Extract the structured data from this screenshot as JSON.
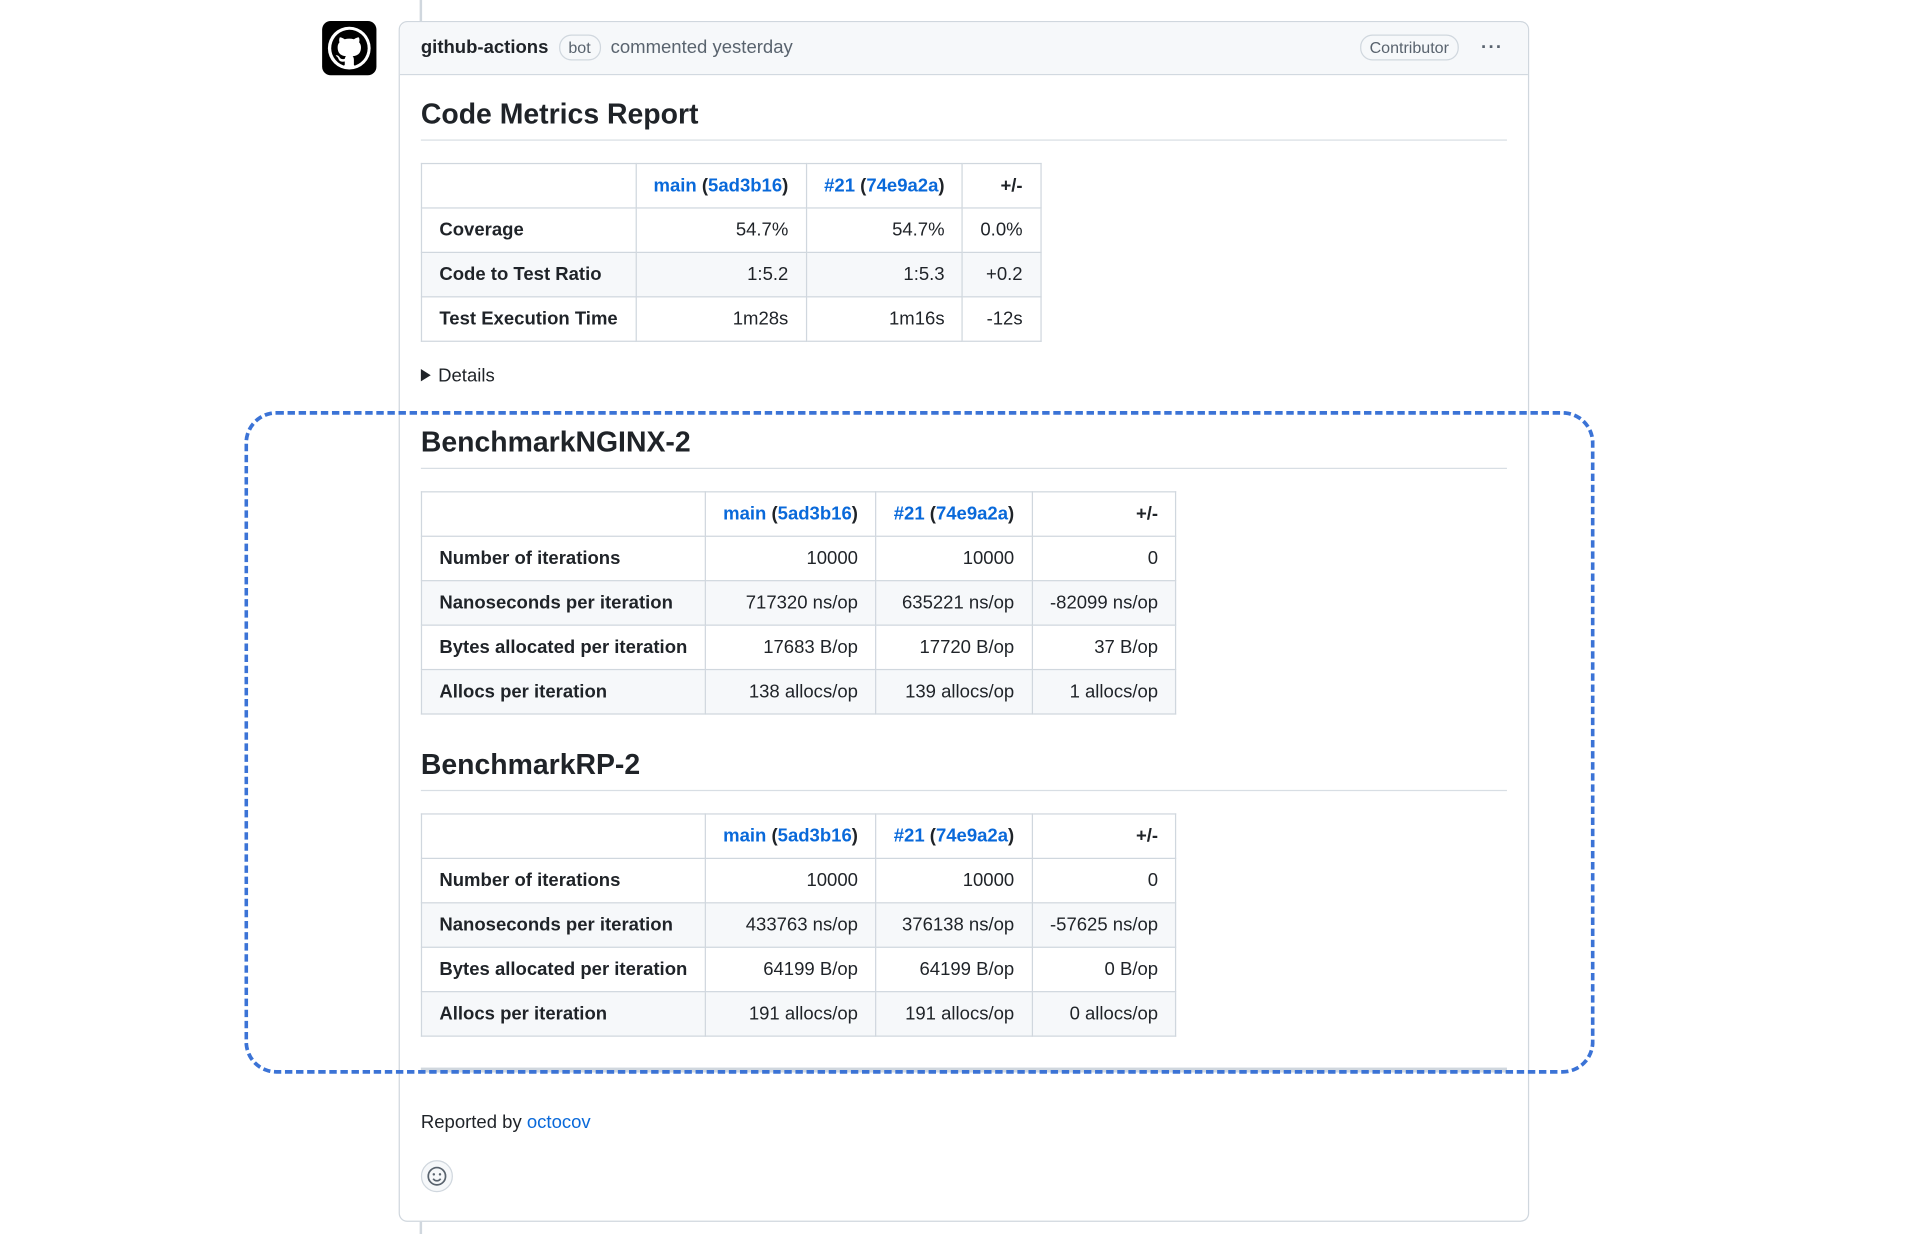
{
  "header": {
    "author": "github-actions",
    "badge": "bot",
    "action": "commented yesterday",
    "role": "Contributor",
    "menu": "···"
  },
  "report": {
    "title": "Code Metrics Report",
    "columns": [
      {
        "ref": "main",
        "commit": "5ad3b16"
      },
      {
        "ref": "#21",
        "commit": "74e9a2a"
      },
      "+/-"
    ],
    "rows": [
      [
        "Coverage",
        "54.7%",
        "54.7%",
        "0.0%"
      ],
      [
        "Code to Test Ratio",
        "1:5.2",
        "1:5.3",
        "+0.2"
      ],
      [
        "Test Execution Time",
        "1m28s",
        "1m16s",
        "-12s"
      ]
    ],
    "details": "Details"
  },
  "benchmarks": [
    {
      "title": "BenchmarkNGINX-2",
      "columns": [
        {
          "ref": "main",
          "commit": "5ad3b16"
        },
        {
          "ref": "#21",
          "commit": "74e9a2a"
        },
        "+/-"
      ],
      "rows": [
        [
          "Number of iterations",
          "10000",
          "10000",
          "0"
        ],
        [
          "Nanoseconds per iteration",
          "717320 ns/op",
          "635221 ns/op",
          "-82099 ns/op"
        ],
        [
          "Bytes allocated per iteration",
          "17683 B/op",
          "17720 B/op",
          "37 B/op"
        ],
        [
          "Allocs per iteration",
          "138 allocs/op",
          "139 allocs/op",
          "1 allocs/op"
        ]
      ]
    },
    {
      "title": "BenchmarkRP-2",
      "columns": [
        {
          "ref": "main",
          "commit": "5ad3b16"
        },
        {
          "ref": "#21",
          "commit": "74e9a2a"
        },
        "+/-"
      ],
      "rows": [
        [
          "Number of iterations",
          "10000",
          "10000",
          "0"
        ],
        [
          "Nanoseconds per iteration",
          "433763 ns/op",
          "376138 ns/op",
          "-57625 ns/op"
        ],
        [
          "Bytes allocated per iteration",
          "64199 B/op",
          "64199 B/op",
          "0 B/op"
        ],
        [
          "Allocs per iteration",
          "191 allocs/op",
          "191 allocs/op",
          "0 allocs/op"
        ]
      ]
    }
  ],
  "footer": {
    "text": "Reported by",
    "link": "octocov"
  }
}
